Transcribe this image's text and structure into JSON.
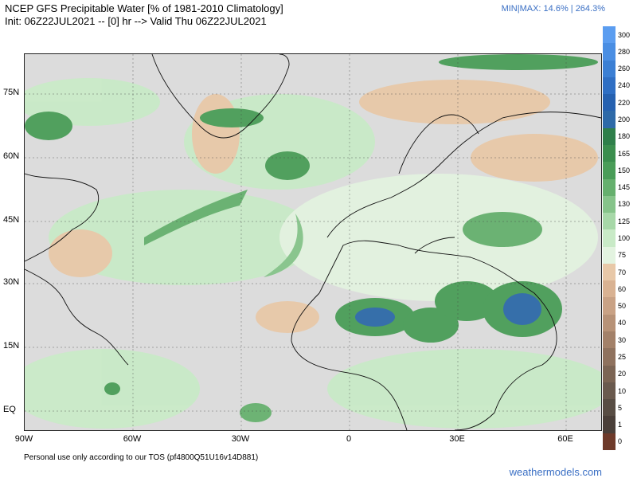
{
  "header": {
    "title_line1": "NCEP GFS Precipitable Water [% of 1981-2010 Climatology]",
    "title_line2": "Init: 06Z22JUL2021 -- [0] hr --> Valid Thu 06Z22JUL2021",
    "minmax": "MIN|MAX: 14.6% | 264.3%"
  },
  "map": {
    "lat_labels": [
      "75N",
      "60N",
      "45N",
      "30N",
      "15N",
      "EQ"
    ],
    "lon_labels": [
      "90W",
      "60W",
      "30W",
      "0",
      "30E",
      "60E"
    ]
  },
  "colorbar": {
    "levels": [
      "300",
      "280",
      "260",
      "240",
      "220",
      "200",
      "180",
      "165",
      "150",
      "145",
      "130",
      "125",
      "100",
      "75",
      "70",
      "60",
      "50",
      "40",
      "30",
      "25",
      "20",
      "10",
      "5",
      "1",
      "0"
    ],
    "colors": [
      "#5b9df0",
      "#4a8ee3",
      "#3b7fd4",
      "#2f6fc4",
      "#2661b0",
      "#2e6aa8",
      "#2f7f4a",
      "#3b8e4e",
      "#4a9d58",
      "#66b06e",
      "#86c48a",
      "#a7d8a8",
      "#c9eac7",
      "#e3f3e0",
      "#e8c8a8",
      "#d9b292",
      "#c9a285",
      "#b79277",
      "#a38169",
      "#8f725e",
      "#7c6554",
      "#6a5a4e",
      "#584d44",
      "#4a3f39",
      "#6e3a2a"
    ]
  },
  "footer": {
    "note": "Personal use only according to our TOS (pf4800Q51U16v14D881)",
    "site": "weathermodels.com"
  }
}
